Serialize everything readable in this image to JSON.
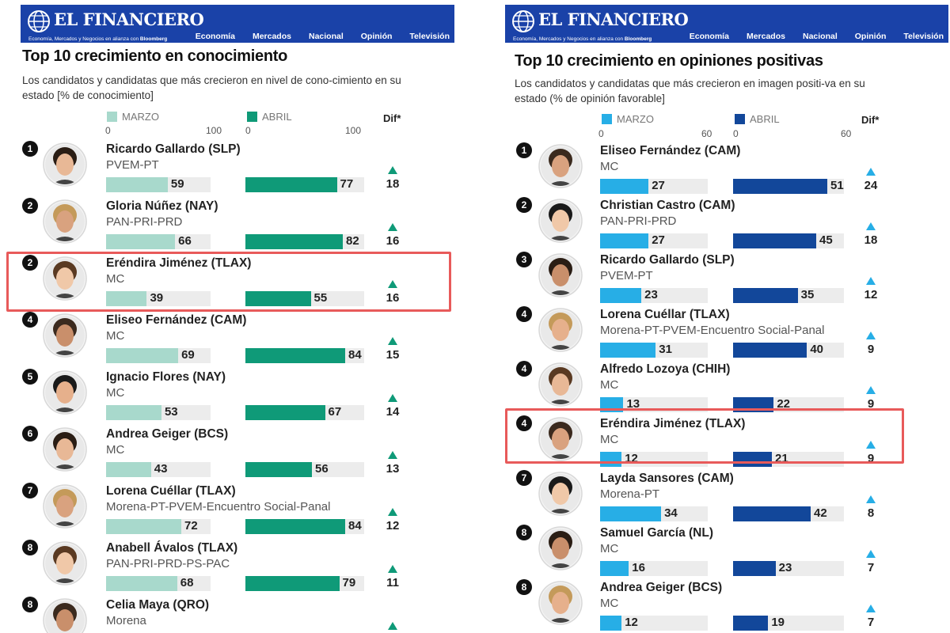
{
  "brand": {
    "name": "EL FINANCIERO",
    "tagline": "Economía, Mercados y Negocios en alianza con",
    "tagline_partner": "Bloomberg",
    "nav": [
      "Economía",
      "Mercados",
      "Nacional",
      "Opinión",
      "Televisión"
    ]
  },
  "colors": {
    "header": "#1a42a8",
    "left_marzo": "#a8d9cc",
    "left_abril": "#0f9a78",
    "right_marzo": "#27aee6",
    "right_abril": "#12479a",
    "up_arrow_left": "#0f9a78",
    "up_arrow_right": "#27aee6",
    "highlight": "#e85a5a"
  },
  "chart_data": [
    {
      "type": "bar",
      "title": "Top 10 crecimiento en conocimiento",
      "subtitle": "Los candidatos y candidatas que más crecieron en nivel de cono-cimiento en su estado [% de conocimiento]",
      "legend": [
        "MARZO",
        "ABRIL"
      ],
      "axis_ticks": {
        "marzo": [
          "0",
          "100"
        ],
        "abril": [
          "0",
          "100"
        ]
      },
      "xlim": [
        0,
        100
      ],
      "dif_label": "Dif*",
      "highlight_row": 2,
      "rows": [
        {
          "rank": "1",
          "name": "Ricardo Gallardo (SLP)",
          "party": "PVEM-PT",
          "marzo": 59,
          "abril": 77,
          "dif": "18"
        },
        {
          "rank": "2",
          "name": "Gloria Núñez (NAY)",
          "party": "PAN-PRI-PRD",
          "marzo": 66,
          "abril": 82,
          "dif": "16"
        },
        {
          "rank": "2",
          "name": "Eréndira Jiménez (TLAX)",
          "party": "MC",
          "marzo": 39,
          "abril": 55,
          "dif": "16"
        },
        {
          "rank": "4",
          "name": "Eliseo Fernández (CAM)",
          "party": "MC",
          "marzo": 69,
          "abril": 84,
          "dif": "15"
        },
        {
          "rank": "5",
          "name": "Ignacio Flores (NAY)",
          "party": "MC",
          "marzo": 53,
          "abril": 67,
          "dif": "14"
        },
        {
          "rank": "6",
          "name": "Andrea Geiger (BCS)",
          "party": "MC",
          "marzo": 43,
          "abril": 56,
          "dif": "13"
        },
        {
          "rank": "7",
          "name": "Lorena Cuéllar (TLAX)",
          "party": "Morena-PT-PVEM-Encuentro Social-Panal",
          "marzo": 72,
          "abril": 84,
          "dif": "12"
        },
        {
          "rank": "8",
          "name": "Anabell Ávalos (TLAX)",
          "party": "PAN-PRI-PRD-PS-PAC",
          "marzo": 68,
          "abril": 79,
          "dif": "11"
        },
        {
          "rank": "8",
          "name": "Celia Maya (QRO)",
          "party": "Morena",
          "marzo": null,
          "abril": null,
          "dif": ""
        }
      ]
    },
    {
      "type": "bar",
      "title": "Top 10 crecimiento en opiniones positivas",
      "subtitle": "Los candidatos y candidatas que más crecieron en imagen positi-va en su estado (% de opinión favorable]",
      "legend": [
        "MARZO",
        "ABRIL"
      ],
      "axis_ticks": {
        "marzo": [
          "0",
          "60"
        ],
        "abril": [
          "0",
          "60"
        ]
      },
      "xlim": [
        0,
        60
      ],
      "dif_label": "Dif*",
      "highlight_row": 5,
      "rows": [
        {
          "rank": "1",
          "name": "Eliseo Fernández (CAM)",
          "party": "MC",
          "marzo": 27,
          "abril": 51,
          "dif": "24"
        },
        {
          "rank": "2",
          "name": "Christian Castro (CAM)",
          "party": "PAN-PRI-PRD",
          "marzo": 27,
          "abril": 45,
          "dif": "18"
        },
        {
          "rank": "3",
          "name": "Ricardo Gallardo (SLP)",
          "party": "PVEM-PT",
          "marzo": 23,
          "abril": 35,
          "dif": "12"
        },
        {
          "rank": "4",
          "name": "Lorena Cuéllar (TLAX)",
          "party": "Morena-PT-PVEM-Encuentro Social-Panal",
          "marzo": 31,
          "abril": 40,
          "dif": "9"
        },
        {
          "rank": "4",
          "name": "Alfredo Lozoya (CHIH)",
          "party": "MC",
          "marzo": 13,
          "abril": 22,
          "dif": "9"
        },
        {
          "rank": "4",
          "name": "Eréndira Jiménez (TLAX)",
          "party": "MC",
          "marzo": 12,
          "abril": 21,
          "dif": "9"
        },
        {
          "rank": "7",
          "name": "Layda Sansores (CAM)",
          "party": "Morena-PT",
          "marzo": 34,
          "abril": 42,
          "dif": "8"
        },
        {
          "rank": "8",
          "name": "Samuel García (NL)",
          "party": "MC",
          "marzo": 16,
          "abril": 23,
          "dif": "7"
        },
        {
          "rank": "8",
          "name": "Andrea Geiger (BCS)",
          "party": "MC",
          "marzo": 12,
          "abril": 19,
          "dif": "7"
        }
      ]
    }
  ]
}
